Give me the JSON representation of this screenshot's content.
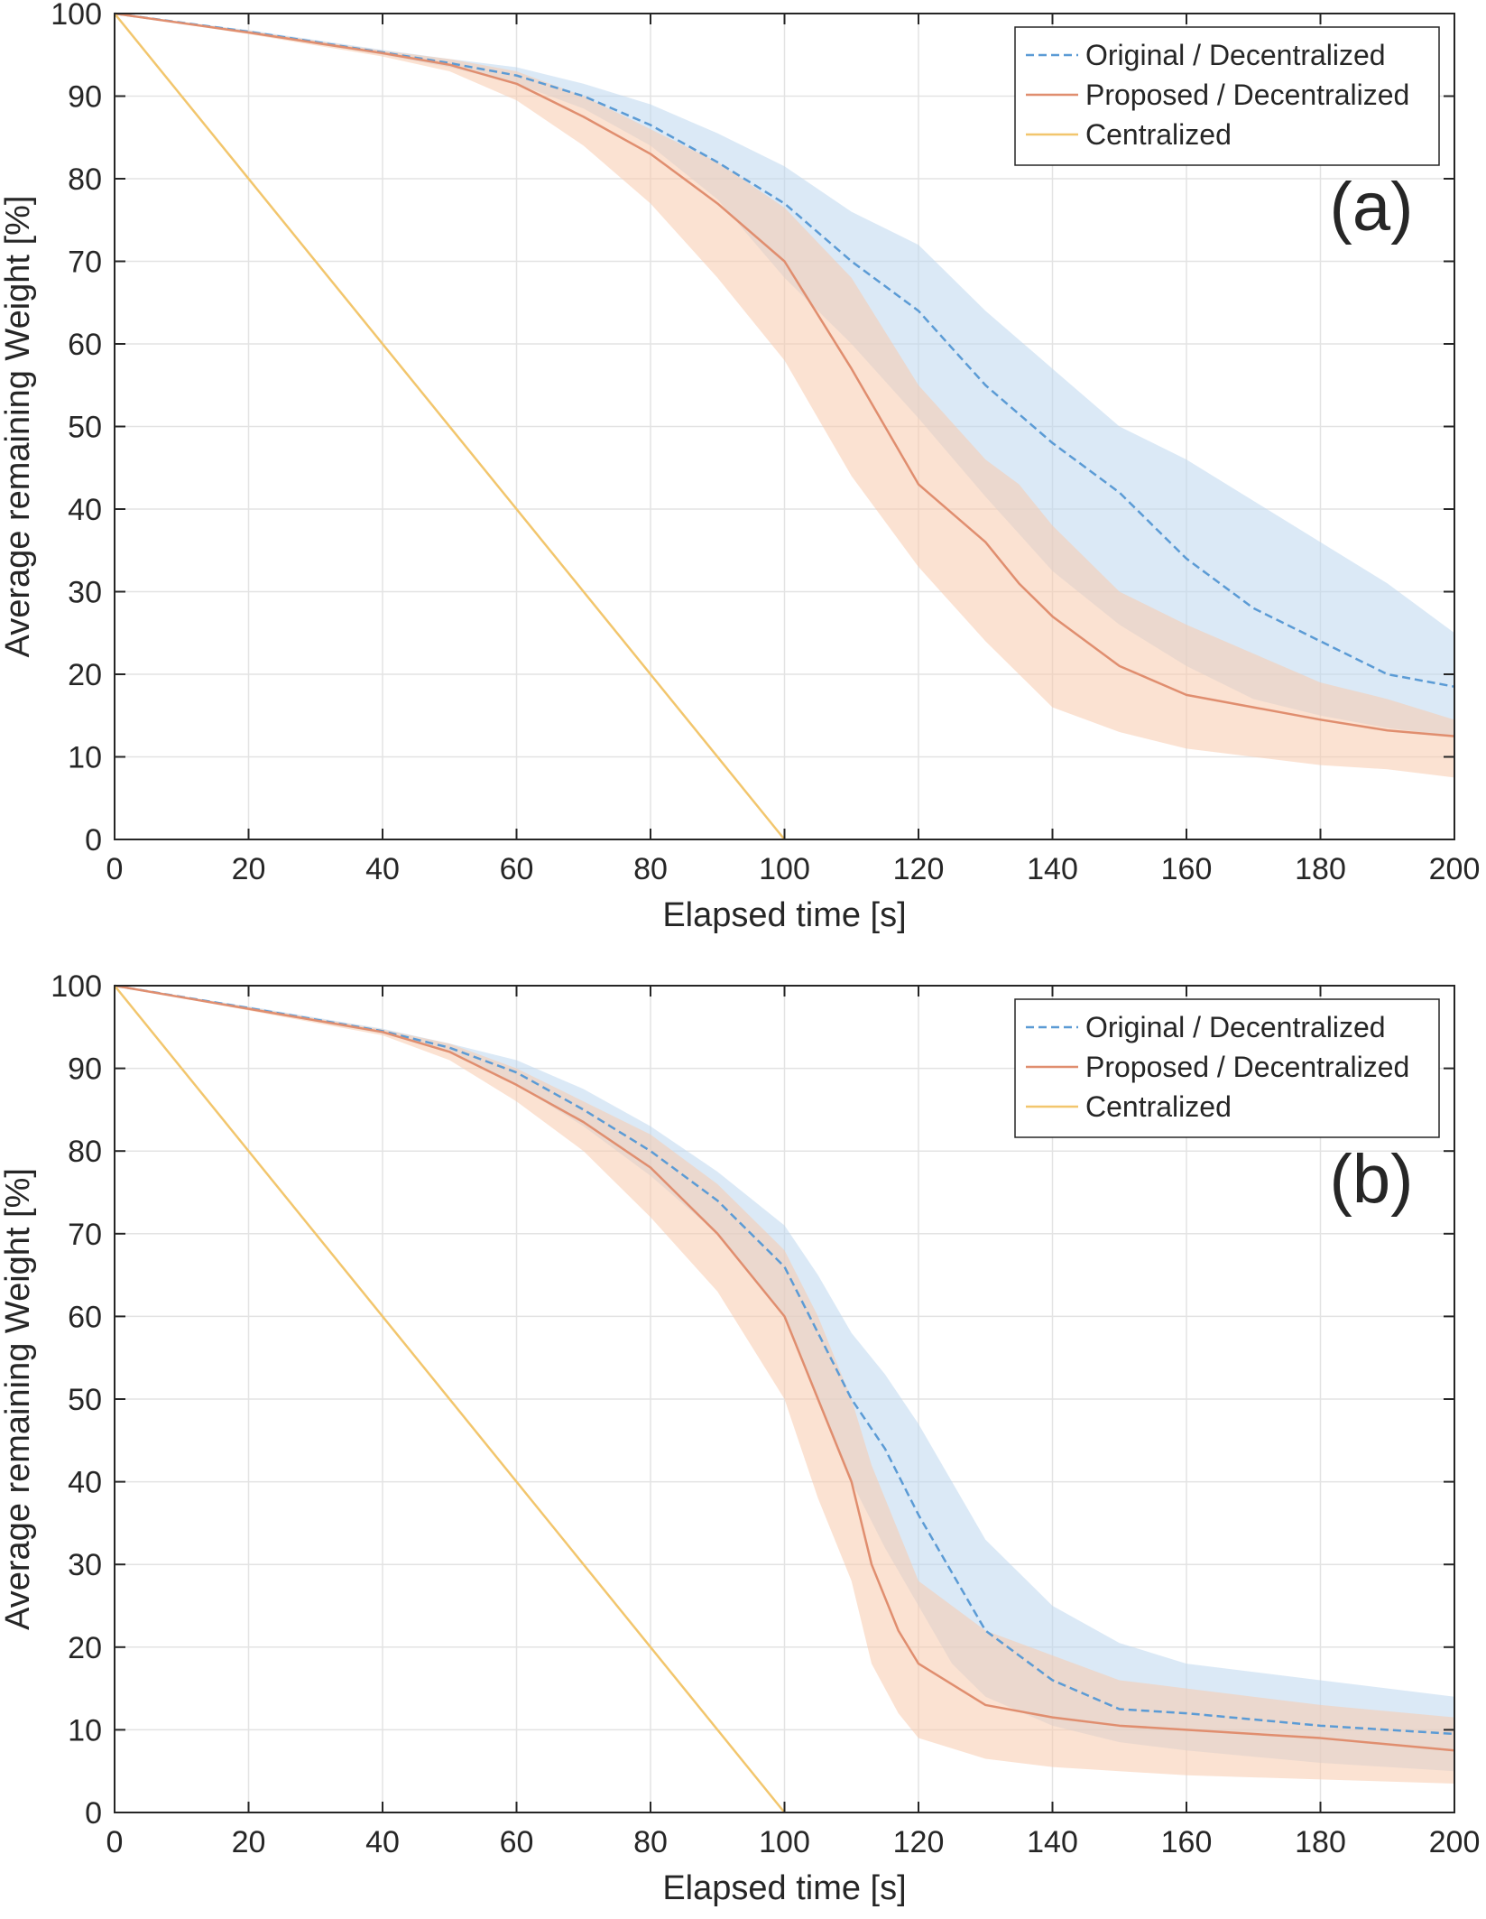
{
  "chart_data": [
    {
      "type": "line",
      "panel_label": "(a)",
      "xlabel": "Elapsed time [s]",
      "ylabel": "Average remaining Weight [%]",
      "xlim": [
        0,
        200
      ],
      "ylim": [
        0,
        100
      ],
      "xticks": [
        0,
        20,
        40,
        60,
        80,
        100,
        120,
        140,
        160,
        180,
        200
      ],
      "yticks": [
        0,
        10,
        20,
        30,
        40,
        50,
        60,
        70,
        80,
        90,
        100
      ],
      "grid": true,
      "legend_position": "top-right",
      "series": [
        {
          "name": "Original / Decentralized",
          "style": "dashed",
          "color": "#5B9BD5",
          "band_color": "#BDD7EE",
          "x": [
            0,
            20,
            40,
            50,
            60,
            70,
            80,
            90,
            100,
            110,
            120,
            130,
            140,
            150,
            160,
            170,
            180,
            190,
            200
          ],
          "y": [
            100,
            97.8,
            95.3,
            94,
            92.5,
            90,
            86.5,
            82,
            77,
            70,
            64,
            55,
            48,
            42,
            34,
            28,
            24,
            20,
            18.5
          ],
          "lower": [
            100,
            97.6,
            95,
            93.5,
            91.5,
            88.5,
            84,
            77.5,
            68,
            60,
            51,
            41.5,
            32.5,
            26,
            21,
            17,
            15,
            13.5,
            12.5
          ],
          "upper": [
            100,
            98,
            95.6,
            94.5,
            93.5,
            91.5,
            89,
            85.5,
            81.5,
            76,
            72,
            64,
            57,
            50,
            46,
            41,
            36,
            31,
            25
          ]
        },
        {
          "name": "Proposed / Decentralized",
          "style": "solid",
          "color": "#E08E6F",
          "band_color": "#F8CBAD",
          "x": [
            0,
            20,
            40,
            50,
            60,
            70,
            80,
            90,
            100,
            110,
            120,
            130,
            135,
            140,
            150,
            160,
            170,
            180,
            190,
            200
          ],
          "y": [
            100,
            97.7,
            95.2,
            93.8,
            91.5,
            87.5,
            83,
            77,
            70,
            57,
            43,
            36,
            31,
            27,
            21,
            17.5,
            16,
            14.5,
            13.2,
            12.5
          ],
          "lower": [
            100,
            97.5,
            94.8,
            93,
            89.5,
            84,
            77,
            68,
            58,
            44,
            33,
            24,
            20,
            16,
            13,
            11,
            10,
            9,
            8.5,
            7.5
          ],
          "upper": [
            100,
            97.9,
            95.5,
            94.5,
            93,
            90,
            86,
            82,
            76.5,
            68,
            55,
            46,
            43,
            38,
            30,
            26,
            22.5,
            19,
            17,
            14.5
          ]
        },
        {
          "name": "Centralized",
          "style": "solid",
          "color": "#F2C66D",
          "x": [
            0,
            100
          ],
          "y": [
            100,
            0
          ]
        }
      ]
    },
    {
      "type": "line",
      "panel_label": "(b)",
      "xlabel": "Elapsed time [s]",
      "ylabel": "Average remaining Weight [%]",
      "xlim": [
        0,
        200
      ],
      "ylim": [
        0,
        100
      ],
      "xticks": [
        0,
        20,
        40,
        60,
        80,
        100,
        120,
        140,
        160,
        180,
        200
      ],
      "yticks": [
        0,
        10,
        20,
        30,
        40,
        50,
        60,
        70,
        80,
        90,
        100
      ],
      "grid": true,
      "legend_position": "top-right",
      "series": [
        {
          "name": "Original / Decentralized",
          "style": "dashed",
          "color": "#5B9BD5",
          "band_color": "#BDD7EE",
          "x": [
            0,
            20,
            40,
            50,
            60,
            70,
            80,
            90,
            100,
            105,
            110,
            115,
            120,
            125,
            130,
            140,
            150,
            160,
            180,
            200
          ],
          "y": [
            100,
            97.3,
            94.5,
            92.5,
            89.5,
            85,
            80,
            74,
            66,
            58,
            50,
            44,
            36,
            29,
            22,
            16,
            12.5,
            12,
            10.5,
            9.5
          ],
          "lower": [
            100,
            97.1,
            94.2,
            92,
            88,
            83,
            77,
            70,
            60,
            50,
            40,
            32,
            25,
            18,
            14,
            10.5,
            8.5,
            7.5,
            6,
            5
          ],
          "upper": [
            100,
            97.5,
            94.8,
            93,
            91,
            87.5,
            83,
            77.5,
            71,
            65,
            58,
            53,
            47,
            40,
            33,
            25,
            20.5,
            18,
            16,
            14
          ]
        },
        {
          "name": "Proposed / Decentralized",
          "style": "solid",
          "color": "#E08E6F",
          "band_color": "#F8CBAD",
          "x": [
            0,
            20,
            40,
            50,
            60,
            70,
            80,
            90,
            100,
            105,
            110,
            113,
            117,
            120,
            130,
            140,
            150,
            160,
            180,
            200
          ],
          "y": [
            100,
            97.2,
            94.4,
            92,
            88,
            83.5,
            78,
            70,
            60,
            50,
            40,
            30,
            22,
            18,
            13,
            11.5,
            10.5,
            10,
            9,
            7.5
          ],
          "lower": [
            100,
            97,
            94,
            91,
            86,
            80,
            72,
            63,
            50,
            38,
            28,
            18,
            12,
            9,
            6.5,
            5.5,
            5,
            4.5,
            4,
            3.5
          ],
          "upper": [
            100,
            97.4,
            94.7,
            93,
            90,
            86,
            82,
            76,
            68,
            60,
            50,
            42,
            34,
            28,
            22,
            19,
            16,
            15,
            13,
            11.5
          ]
        },
        {
          "name": "Centralized",
          "style": "solid",
          "color": "#F2C66D",
          "x": [
            0,
            100
          ],
          "y": [
            100,
            0
          ]
        }
      ]
    }
  ]
}
